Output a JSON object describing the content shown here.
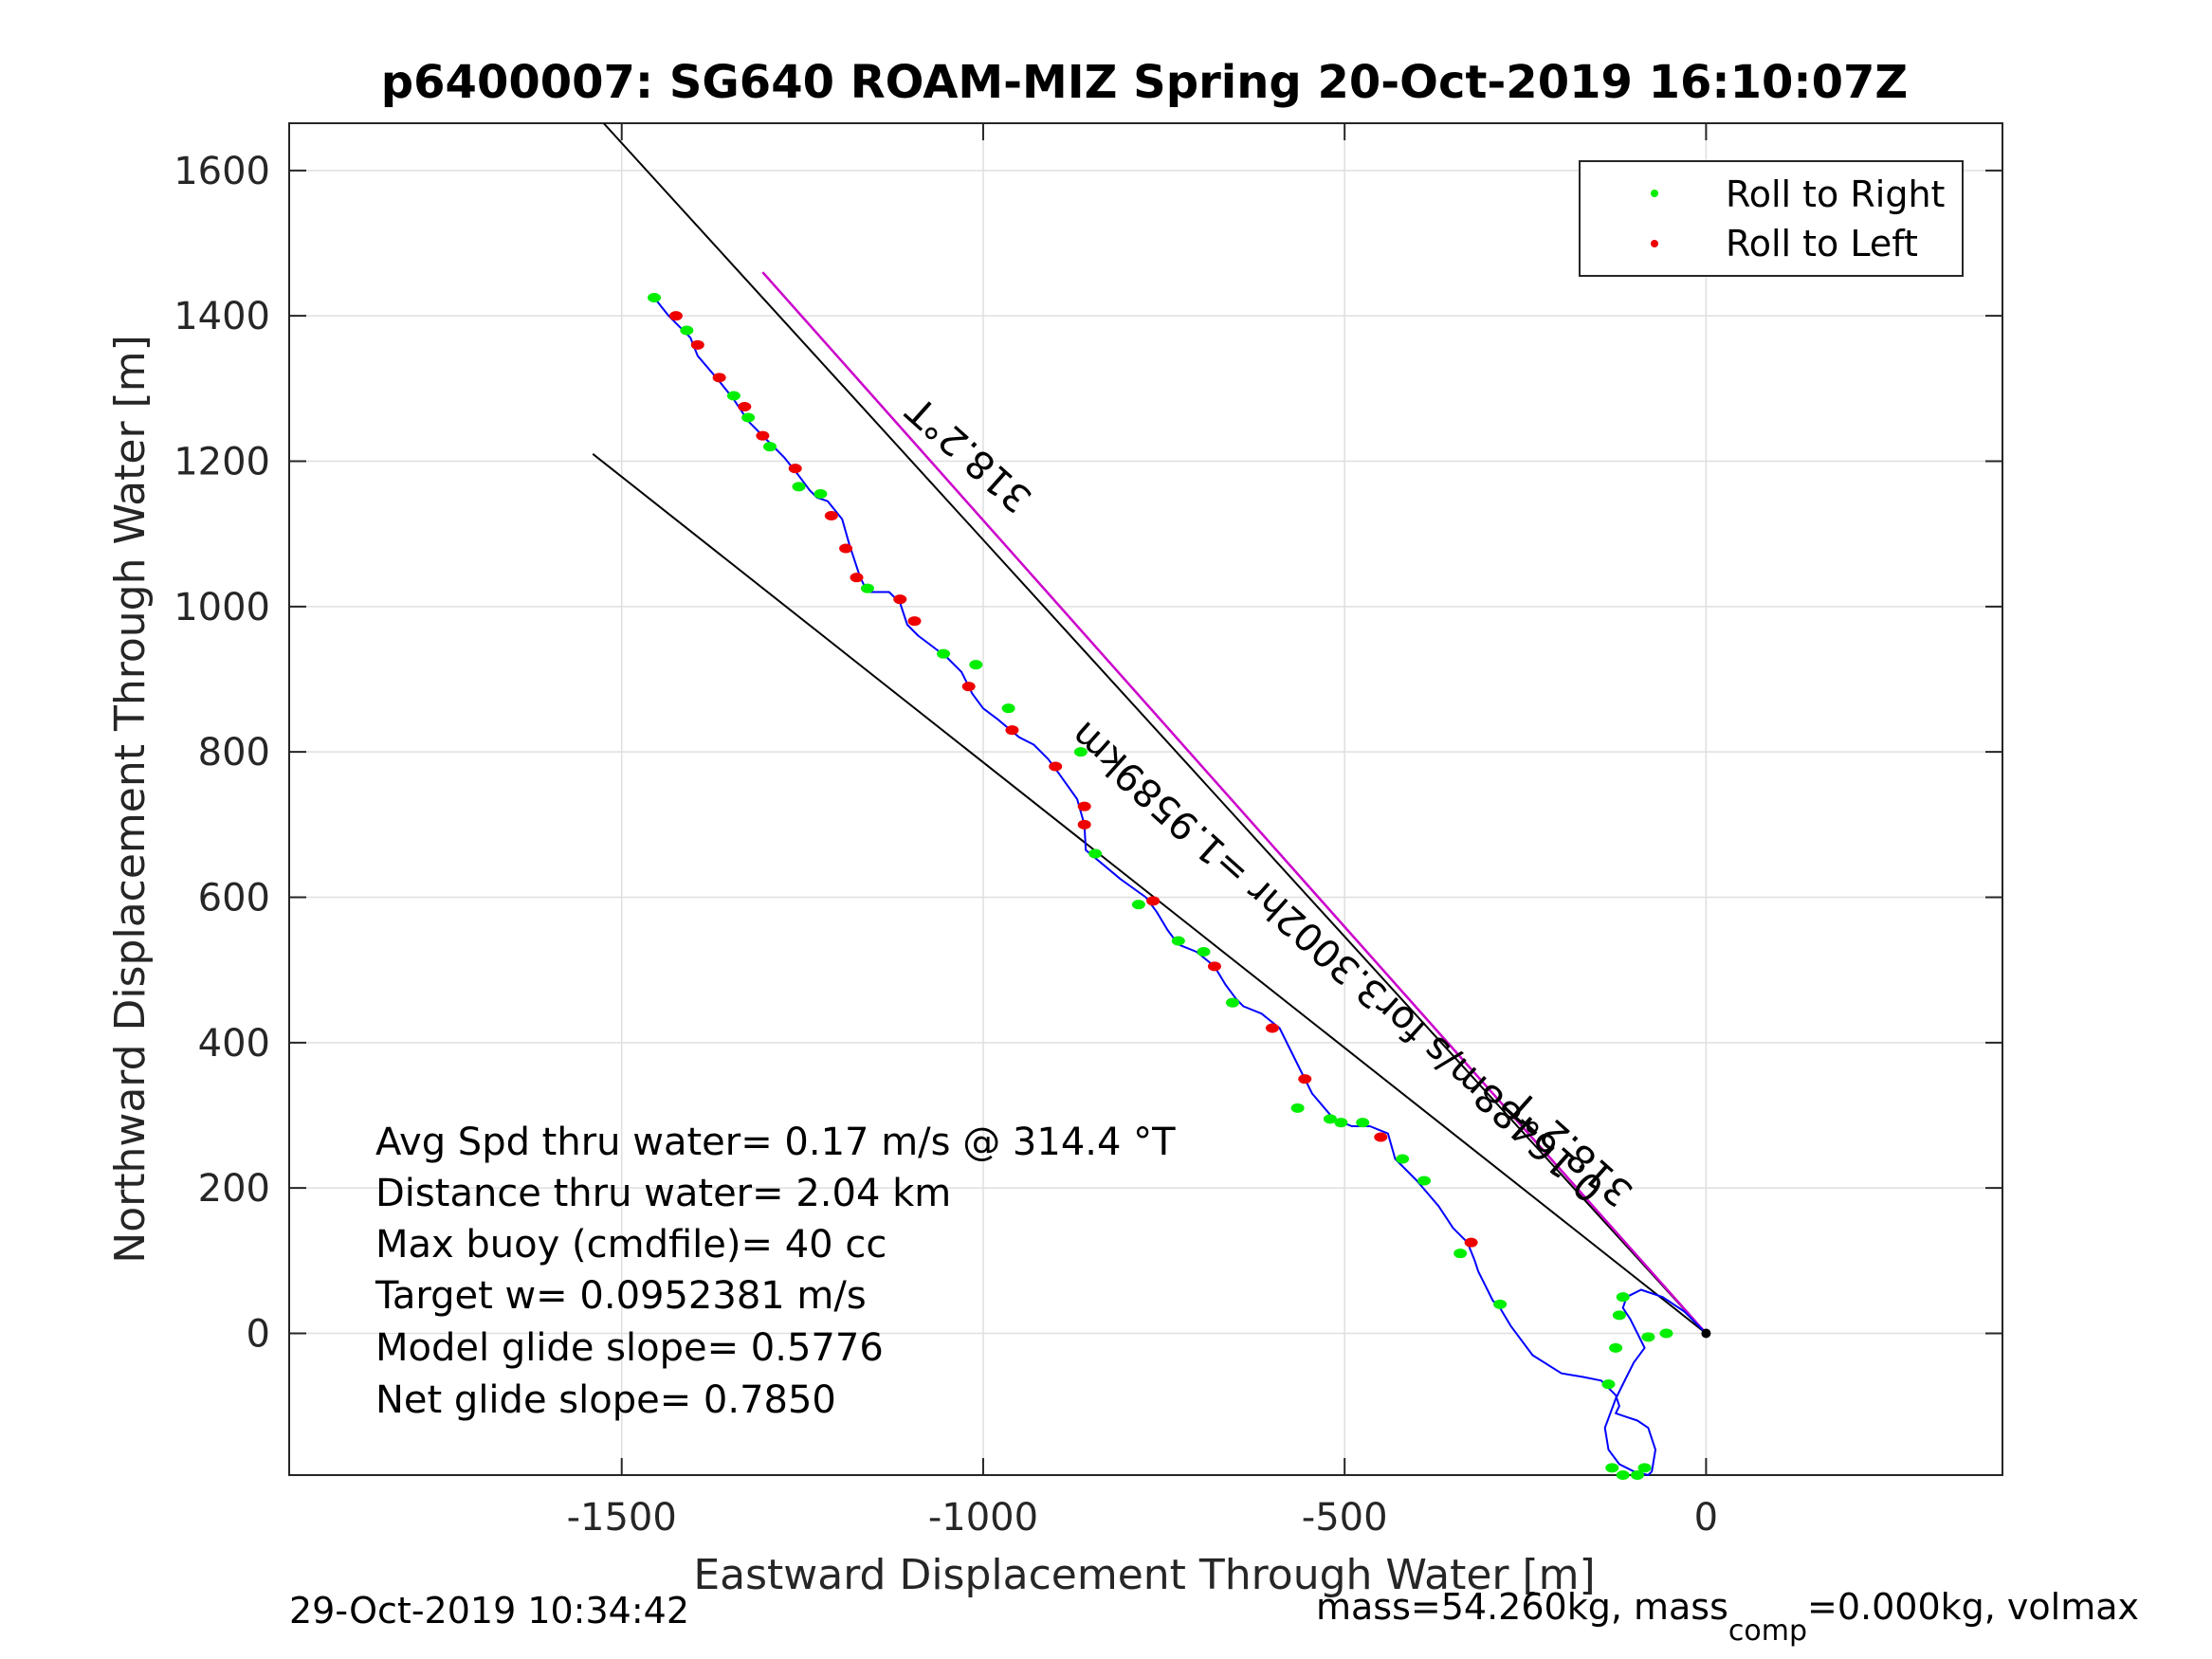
{
  "chart_data": {
    "type": "line",
    "title": "p6400007: SG640 ROAM-MIZ Spring 20-Oct-2019 16:10:07Z",
    "xlabel": "Eastward Displacement Through Water [m]",
    "ylabel": "Northward Displacement Through Water [m]",
    "xlim": [
      -1960,
      410
    ],
    "ylim": [
      -195,
      1665
    ],
    "xticks": [
      -1500,
      -1000,
      -500,
      0
    ],
    "yticks": [
      0,
      200,
      400,
      600,
      800,
      1000,
      1200,
      1400,
      1600
    ],
    "grid": true,
    "legend_placement": "top-right",
    "colors": {
      "track": "#0000ff",
      "roll_right": "#00ee00",
      "roll_left": "#ee0000",
      "heading_line": "#cc00cc",
      "reference_lines": "#000000"
    },
    "legend": [
      "Roll to Right",
      "Roll to Left"
    ],
    "series": [
      {
        "name": "Roll to Right",
        "x": [
          -1455,
          -1410,
          -1345,
          -1325,
          -1295,
          -1255,
          -1225,
          -1160,
          -1055,
          -1010,
          -965,
          -865,
          -845,
          -785,
          -730,
          -695,
          -655,
          -565,
          -520,
          -505,
          -475,
          -420,
          -390,
          -340,
          -285,
          -135,
          -125,
          -120,
          -115,
          -55,
          -80,
          -85,
          -95,
          -115,
          -130
        ],
        "y": [
          1425,
          1380,
          1290,
          1260,
          1220,
          1165,
          1155,
          1025,
          935,
          920,
          860,
          800,
          660,
          590,
          540,
          525,
          455,
          310,
          295,
          290,
          290,
          240,
          210,
          110,
          40,
          -70,
          -20,
          25,
          50,
          0,
          -5,
          -185,
          -195,
          -195,
          -185
        ]
      },
      {
        "name": "Roll to Left",
        "x": [
          -1425,
          -1395,
          -1365,
          -1330,
          -1305,
          -1260,
          -1210,
          -1190,
          -1175,
          -1115,
          -1095,
          -1020,
          -960,
          -900,
          -860,
          -860,
          -765,
          -680,
          -600,
          -555,
          -450,
          -325
        ],
        "y": [
          1400,
          1360,
          1315,
          1275,
          1235,
          1190,
          1125,
          1080,
          1040,
          1010,
          980,
          890,
          830,
          780,
          725,
          700,
          595,
          505,
          420,
          350,
          270,
          125
        ]
      },
      {
        "name": "",
        "x": [
          -1455,
          -1435,
          -1405,
          -1395,
          -1365,
          -1345,
          -1325,
          -1300,
          -1275,
          -1255,
          -1240,
          -1230,
          -1215,
          -1195,
          -1185,
          -1180,
          -1170,
          -1160,
          -1130,
          -1115,
          -1105,
          -1090,
          -1070,
          -1050,
          -1030,
          -1015,
          -1000,
          -980,
          -950,
          -930,
          -910,
          -895,
          -870,
          -860,
          -858,
          -840,
          -810,
          -775,
          -760,
          -745,
          -730,
          -705,
          -680,
          -665,
          -650,
          -640,
          -615,
          -590,
          -575,
          -560,
          -545,
          -515,
          -490,
          -465,
          -440,
          -430,
          -400,
          -370,
          -350,
          -330,
          -320,
          -315,
          -305,
          -295,
          -285,
          -270,
          -240,
          -200,
          -170,
          -145,
          -125,
          -120,
          -125,
          -110,
          -95,
          -80,
          -70,
          -75,
          -80,
          -100,
          -120,
          -135,
          -140,
          -125,
          -110,
          -100,
          -85,
          -95,
          -105,
          -115,
          -110,
          -90,
          -60,
          -30,
          0
        ],
        "y": [
          1425,
          1400,
          1370,
          1345,
          1310,
          1285,
          1255,
          1230,
          1205,
          1180,
          1160,
          1150,
          1145,
          1120,
          1085,
          1070,
          1040,
          1020,
          1020,
          1005,
          975,
          960,
          945,
          930,
          910,
          880,
          860,
          845,
          820,
          810,
          790,
          770,
          735,
          700,
          665,
          650,
          625,
          600,
          580,
          555,
          535,
          525,
          505,
          480,
          460,
          450,
          440,
          420,
          390,
          360,
          330,
          295,
          285,
          285,
          275,
          240,
          210,
          175,
          145,
          125,
          100,
          85,
          65,
          45,
          35,
          10,
          -30,
          -55,
          -60,
          -65,
          -85,
          -100,
          -110,
          -115,
          -120,
          -130,
          -160,
          -190,
          -195,
          -190,
          -180,
          -160,
          -130,
          -90,
          -60,
          -40,
          -20,
          0,
          20,
          35,
          50,
          60,
          50,
          30,
          0
        ]
      }
    ],
    "reference_lines": [
      {
        "x": [
          0,
          -1525
        ],
        "y": [
          0,
          1665
        ]
      },
      {
        "x": [
          0,
          -1305
        ],
        "y": [
          0,
          1460
        ]
      },
      {
        "x": [
          0,
          -1540
        ],
        "y": [
          0,
          1210
        ]
      }
    ],
    "annotations": [
      "318.2°T",
      "0.16488m/s for3.3002hr =1.9589km",
      "318.2°T"
    ],
    "stats_text": [
      "Avg Spd thru water=  0.17 m/s @ 314.4 °T",
      "Distance thru water=  2.04 km",
      "Max buoy (cmdfile)= 40 cc",
      "Target w= 0.0952381 m/s",
      "Model glide slope= 0.5776",
      "Net glide slope= 0.7850"
    ]
  },
  "footer": {
    "timestamp": "29-Oct-2019 10:34:42",
    "mass_text_a": "mass=54.260kg, mass",
    "mass_sub": "comp",
    "mass_text_b": "=0.000kg, volmax"
  }
}
